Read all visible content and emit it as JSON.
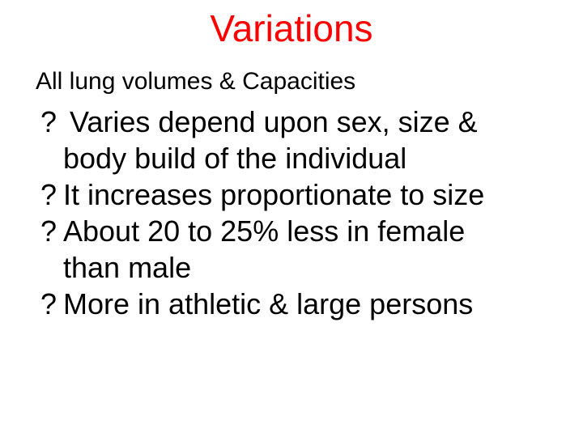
{
  "title": {
    "text": "Variations",
    "color": "#ff0000"
  },
  "subtitle": "All lung volumes & Capacities",
  "bullet_marker": "?",
  "bullets": [
    {
      "line1": " Varies depend upon sex, size &",
      "line2": "body build of the individual"
    },
    {
      "line1": "It increases proportionate to size",
      "line2": ""
    },
    {
      "line1": "About 20 to 25% less in female",
      "line2": "than male"
    },
    {
      "line1": "More in athletic & large persons",
      "line2": ""
    }
  ],
  "colors": {
    "text": "#000000",
    "background": "#ffffff"
  }
}
